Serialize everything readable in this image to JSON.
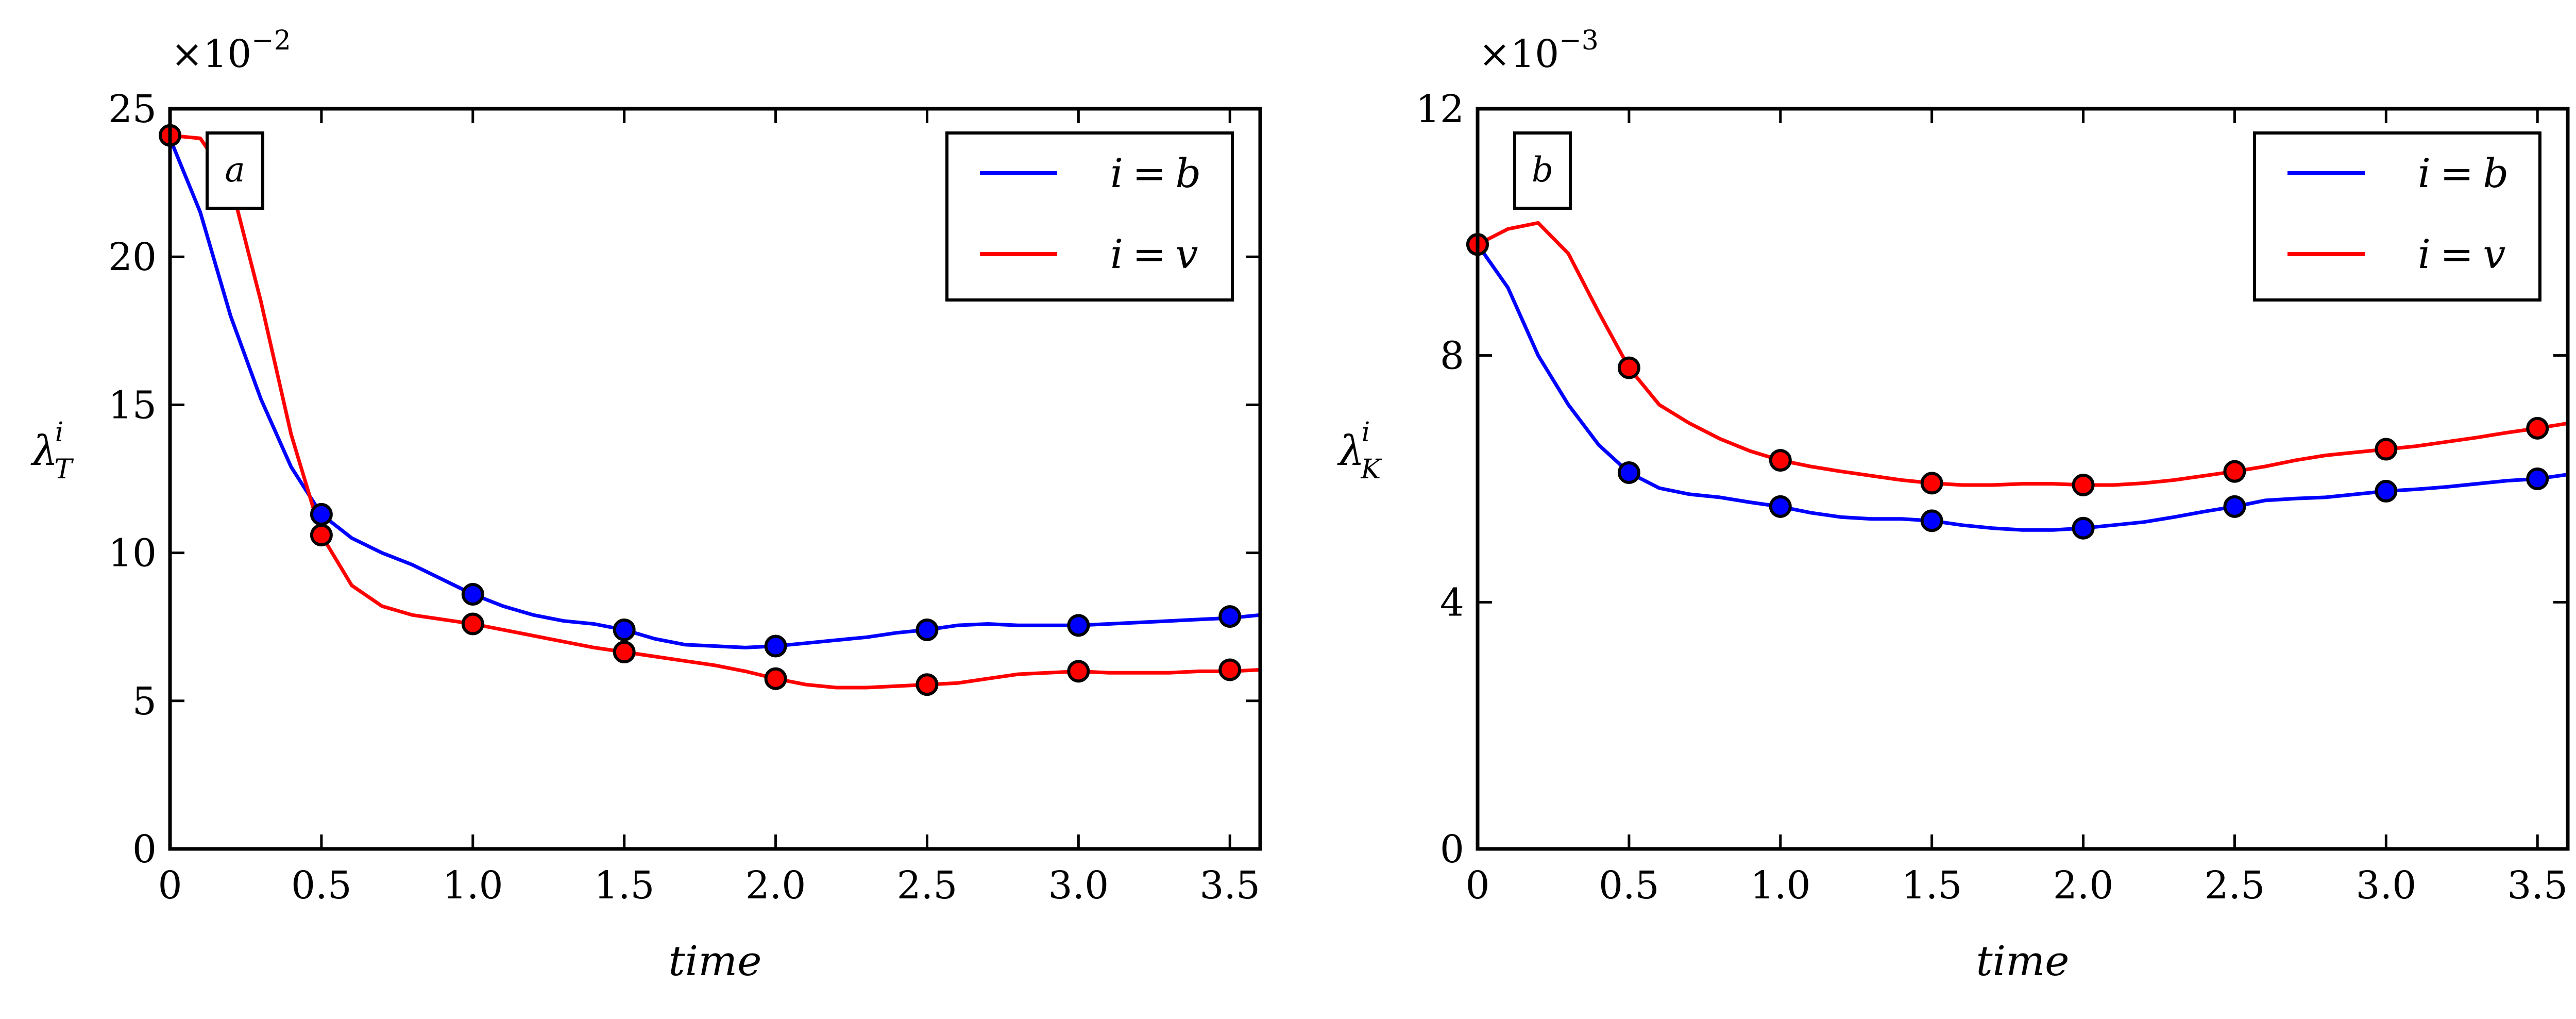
{
  "chart_data": [
    {
      "type": "line",
      "panel_label": "a",
      "xlabel": "time",
      "ylabel_main": "λ",
      "ylabel_sub": "T",
      "ylabel_sup": "i",
      "y_multiplier_base": "×10",
      "y_multiplier_exp": "−2",
      "xlim": [
        0,
        3.6
      ],
      "ylim": [
        0,
        25
      ],
      "xticks": [
        "0",
        "0.5",
        "1.0",
        "1.5",
        "2.0",
        "2.5",
        "3.0",
        "3.5"
      ],
      "xtick_values": [
        0,
        0.5,
        1.0,
        1.5,
        2.0,
        2.5,
        3.0,
        3.5
      ],
      "yticks": [
        "0",
        "5",
        "10",
        "15",
        "20",
        "25"
      ],
      "ytick_values": [
        0,
        5,
        10,
        15,
        20,
        25
      ],
      "legend_position": "top-right",
      "series": [
        {
          "name": "i = b",
          "legend_lhs": "i",
          "legend_rhs": "b",
          "color": "#0000ff",
          "x": [
            0,
            0.1,
            0.2,
            0.3,
            0.4,
            0.5,
            0.6,
            0.7,
            0.8,
            0.9,
            1.0,
            1.1,
            1.2,
            1.3,
            1.4,
            1.5,
            1.6,
            1.7,
            1.8,
            1.9,
            2.0,
            2.1,
            2.2,
            2.3,
            2.4,
            2.5,
            2.6,
            2.7,
            2.8,
            2.9,
            3.0,
            3.1,
            3.2,
            3.3,
            3.4,
            3.5,
            3.6
          ],
          "y": [
            24.0,
            21.5,
            18.0,
            15.2,
            12.9,
            11.3,
            10.5,
            10.0,
            9.6,
            9.1,
            8.6,
            8.2,
            7.9,
            7.7,
            7.6,
            7.4,
            7.1,
            6.9,
            6.85,
            6.8,
            6.85,
            6.95,
            7.05,
            7.15,
            7.3,
            7.4,
            7.55,
            7.6,
            7.55,
            7.55,
            7.55,
            7.6,
            7.65,
            7.7,
            7.75,
            7.8,
            7.9
          ],
          "markers_x": [
            0.5,
            1.0,
            1.5,
            2.0,
            2.5,
            3.0,
            3.5
          ],
          "markers_y": [
            11.3,
            8.6,
            7.4,
            6.85,
            7.4,
            7.55,
            7.85
          ]
        },
        {
          "name": "i = v",
          "legend_lhs": "i",
          "legend_rhs": "v",
          "color": "#ff0000",
          "x": [
            0,
            0.1,
            0.2,
            0.3,
            0.4,
            0.5,
            0.6,
            0.7,
            0.8,
            0.9,
            1.0,
            1.1,
            1.2,
            1.3,
            1.4,
            1.5,
            1.6,
            1.7,
            1.8,
            1.9,
            2.0,
            2.1,
            2.2,
            2.3,
            2.4,
            2.5,
            2.6,
            2.7,
            2.8,
            2.9,
            3.0,
            3.1,
            3.2,
            3.3,
            3.4,
            3.5,
            3.6
          ],
          "y": [
            24.1,
            24.0,
            22.5,
            18.5,
            14.0,
            10.6,
            8.9,
            8.2,
            7.9,
            7.75,
            7.6,
            7.4,
            7.2,
            7.0,
            6.8,
            6.65,
            6.5,
            6.35,
            6.2,
            6.0,
            5.75,
            5.55,
            5.45,
            5.45,
            5.5,
            5.55,
            5.6,
            5.75,
            5.9,
            5.95,
            6.0,
            5.95,
            5.95,
            5.95,
            6.0,
            6.0,
            6.05
          ],
          "markers_x": [
            0,
            0.5,
            1.0,
            1.5,
            2.0,
            2.5,
            3.0,
            3.5
          ],
          "markers_y": [
            24.1,
            10.6,
            7.6,
            6.65,
            5.75,
            5.55,
            6.0,
            6.05
          ]
        }
      ]
    },
    {
      "type": "line",
      "panel_label": "b",
      "xlabel": "time",
      "ylabel_main": "λ",
      "ylabel_sub": "K",
      "ylabel_sup": "i",
      "y_multiplier_base": "×10",
      "y_multiplier_exp": "−3",
      "xlim": [
        0,
        3.6
      ],
      "ylim": [
        0,
        12
      ],
      "xticks": [
        "0",
        "0.5",
        "1.0",
        "1.5",
        "2.0",
        "2.5",
        "3.0",
        "3.5"
      ],
      "xtick_values": [
        0,
        0.5,
        1.0,
        1.5,
        2.0,
        2.5,
        3.0,
        3.5
      ],
      "yticks": [
        "0",
        "4",
        "8",
        "12"
      ],
      "ytick_values": [
        0,
        4,
        8,
        12
      ],
      "legend_position": "top-right",
      "series": [
        {
          "name": "i = b",
          "legend_lhs": "i",
          "legend_rhs": "b",
          "color": "#0000ff",
          "x": [
            0,
            0.1,
            0.2,
            0.3,
            0.4,
            0.5,
            0.6,
            0.7,
            0.8,
            0.9,
            1.0,
            1.1,
            1.2,
            1.3,
            1.4,
            1.5,
            1.6,
            1.7,
            1.8,
            1.9,
            2.0,
            2.1,
            2.2,
            2.3,
            2.4,
            2.5,
            2.6,
            2.7,
            2.8,
            2.9,
            3.0,
            3.1,
            3.2,
            3.3,
            3.4,
            3.5,
            3.6
          ],
          "y": [
            9.8,
            9.1,
            8.0,
            7.2,
            6.55,
            6.1,
            5.85,
            5.75,
            5.7,
            5.62,
            5.55,
            5.45,
            5.38,
            5.35,
            5.35,
            5.32,
            5.25,
            5.2,
            5.17,
            5.17,
            5.2,
            5.25,
            5.3,
            5.38,
            5.47,
            5.55,
            5.65,
            5.68,
            5.7,
            5.75,
            5.8,
            5.83,
            5.87,
            5.92,
            5.97,
            6.0,
            6.07
          ],
          "markers_x": [
            0,
            0.5,
            1.0,
            1.5,
            2.0,
            2.5,
            3.0,
            3.5
          ],
          "markers_y": [
            9.8,
            6.1,
            5.55,
            5.32,
            5.2,
            5.55,
            5.8,
            6.0
          ]
        },
        {
          "name": "i = v",
          "legend_lhs": "i",
          "legend_rhs": "v",
          "color": "#ff0000",
          "x": [
            0,
            0.1,
            0.2,
            0.3,
            0.4,
            0.5,
            0.6,
            0.7,
            0.8,
            0.9,
            1.0,
            1.1,
            1.2,
            1.3,
            1.4,
            1.5,
            1.6,
            1.7,
            1.8,
            1.9,
            2.0,
            2.1,
            2.2,
            2.3,
            2.4,
            2.5,
            2.6,
            2.7,
            2.8,
            2.9,
            3.0,
            3.1,
            3.2,
            3.3,
            3.4,
            3.5,
            3.6
          ],
          "y": [
            9.8,
            10.05,
            10.15,
            9.65,
            8.7,
            7.8,
            7.2,
            6.9,
            6.65,
            6.45,
            6.3,
            6.2,
            6.12,
            6.05,
            5.98,
            5.93,
            5.9,
            5.9,
            5.92,
            5.92,
            5.9,
            5.9,
            5.93,
            5.98,
            6.05,
            6.12,
            6.2,
            6.3,
            6.38,
            6.43,
            6.48,
            6.53,
            6.6,
            6.67,
            6.75,
            6.82,
            6.9
          ],
          "markers_x": [
            0,
            0.5,
            1.0,
            1.5,
            2.0,
            2.5,
            3.0,
            3.5
          ],
          "markers_y": [
            9.8,
            7.8,
            6.3,
            5.93,
            5.9,
            6.12,
            6.48,
            6.82
          ]
        }
      ]
    }
  ]
}
